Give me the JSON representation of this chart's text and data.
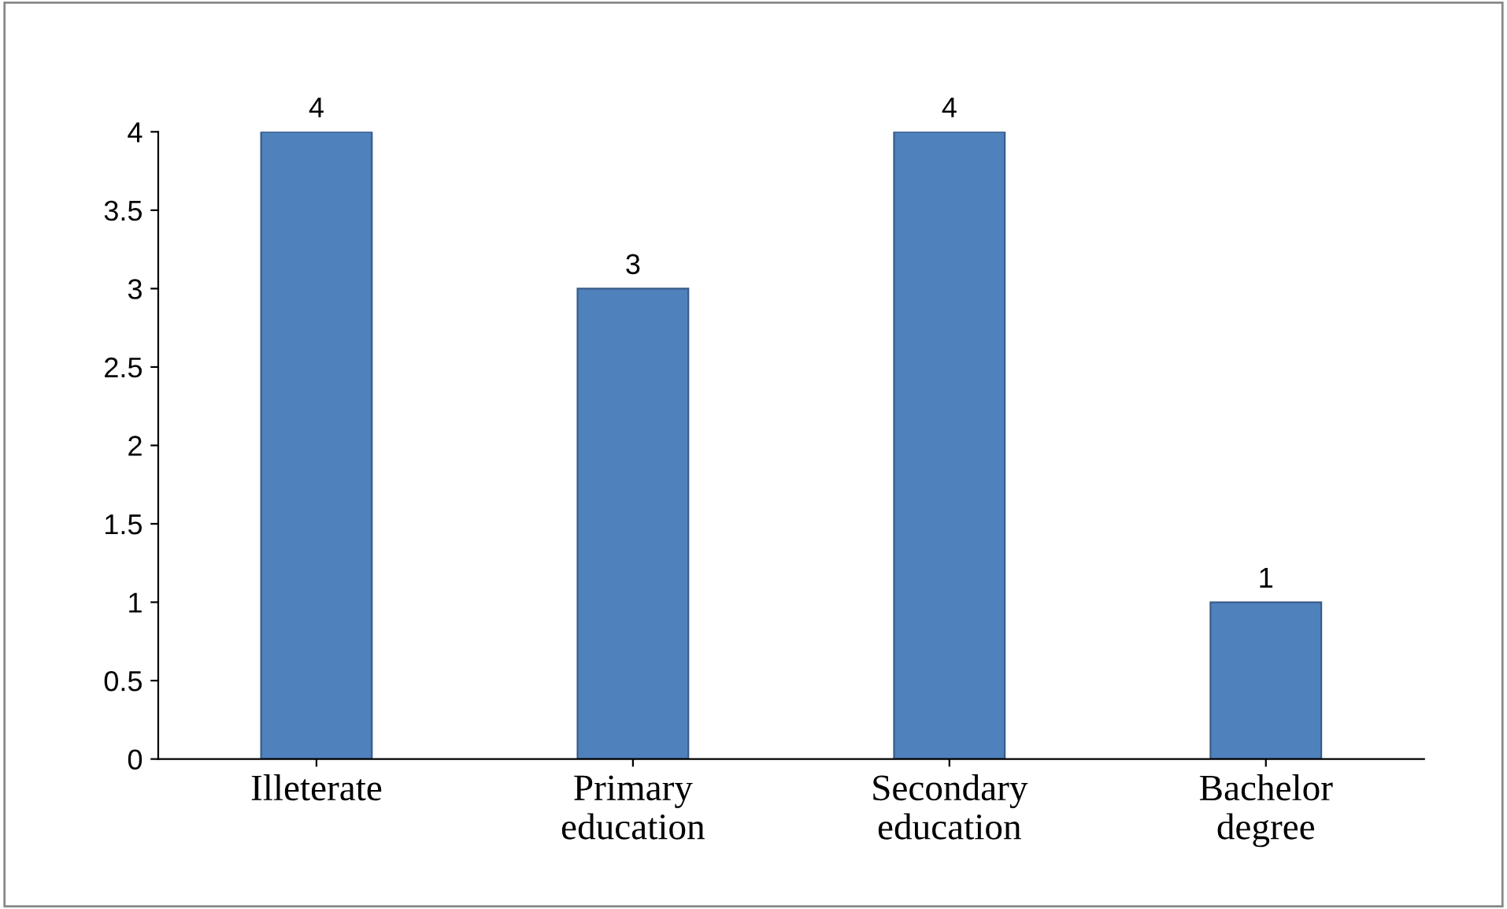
{
  "chart_data": {
    "type": "bar",
    "categories": [
      "Illeterate",
      "Primary education",
      "Secondary education",
      "Bachelor degree"
    ],
    "values": [
      4,
      3,
      4,
      1
    ],
    "color": "#4f81bd",
    "ylim": [
      0,
      4
    ],
    "yticks": [
      0,
      0.5,
      1,
      1.5,
      2,
      2.5,
      3,
      3.5,
      4
    ],
    "data_labels": true,
    "grid": false,
    "legend": false
  }
}
